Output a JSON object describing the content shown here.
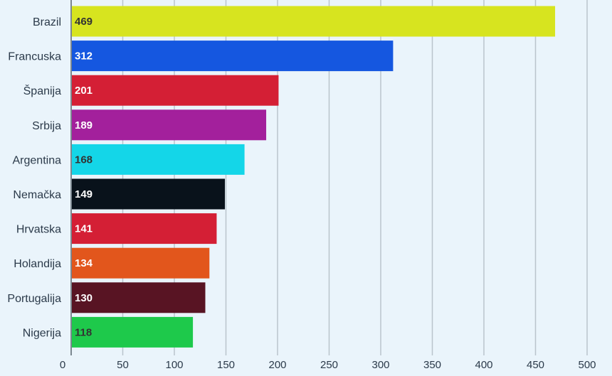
{
  "chart_data": {
    "type": "bar",
    "orientation": "horizontal",
    "categories": [
      "Brazil",
      "Francuska",
      "Španija",
      "Srbija",
      "Argentina",
      "Nemačka",
      "Hrvatska",
      "Holandija",
      "Portugalija",
      "Nigerija"
    ],
    "values": [
      469,
      312,
      201,
      189,
      168,
      149,
      141,
      134,
      130,
      118
    ],
    "value_labels": [
      "469",
      "312",
      "201",
      "189",
      "168",
      "149",
      "141",
      "134",
      "130",
      "118"
    ],
    "bar_colors": [
      "#d7e41f",
      "#1557e0",
      "#d41f35",
      "#a3209c",
      "#14d6e8",
      "#09121b",
      "#d41f35",
      "#e2561c",
      "#581423",
      "#1ec94b"
    ],
    "value_label_colors": [
      "#333333",
      "#ffffff",
      "#ffffff",
      "#ffffff",
      "#333333",
      "#ffffff",
      "#ffffff",
      "#ffffff",
      "#ffffff",
      "#333333"
    ],
    "xticks": [
      0,
      50,
      100,
      150,
      200,
      250,
      300,
      350,
      400,
      450,
      500
    ],
    "xtick_labels": [
      "0",
      "50",
      "100",
      "150",
      "200",
      "250",
      "300",
      "350",
      "400",
      "450",
      "500"
    ],
    "xlim": [
      0,
      525
    ],
    "grid": true,
    "background_color": "#eaf4fb",
    "title": "",
    "xlabel": "",
    "ylabel": ""
  }
}
